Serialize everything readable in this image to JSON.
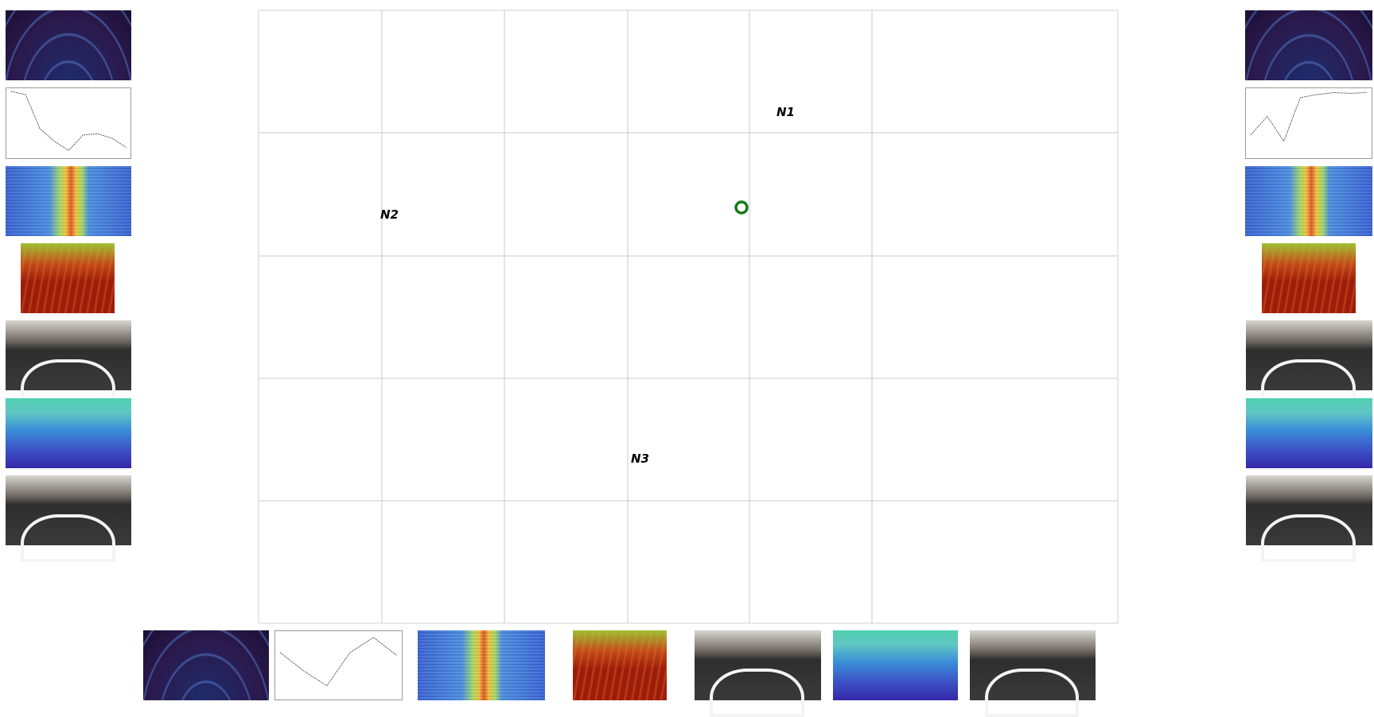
{
  "nodes": [
    {
      "label": "N1"
    },
    {
      "label": "N2"
    },
    {
      "label": "N3"
    }
  ]
}
